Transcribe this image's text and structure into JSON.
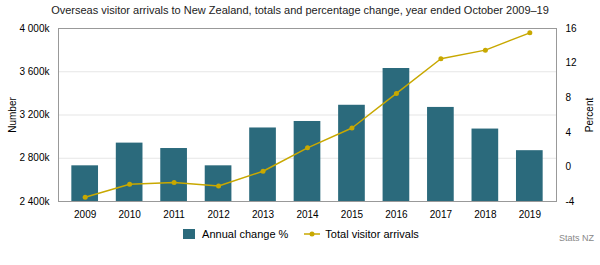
{
  "chart_data": {
    "type": "bar",
    "title": "Overseas visitor arrivals to New Zealand, totals and percentage change, year ended October 2009–19",
    "x": [
      2009,
      2010,
      2011,
      2012,
      2013,
      2014,
      2015,
      2016,
      2017,
      2018,
      2019
    ],
    "xlim": [
      2008.4,
      2019.6
    ],
    "xticks": [
      2009,
      2010,
      2011,
      2012,
      2013,
      2014,
      2015,
      2016,
      2017,
      2018,
      2019
    ],
    "series": [
      {
        "name": "Annual change %",
        "type": "bar",
        "color": "#2b6a7c",
        "values": [
          2730000,
          2940000,
          2890000,
          2730000,
          3080000,
          3140000,
          3290000,
          3630000,
          3270000,
          3070000,
          2870000
        ]
      },
      {
        "name": "Total visitor arrivals",
        "type": "line",
        "color": "#c8a800",
        "marker": "circle",
        "axis": "y2",
        "values": [
          -3.5,
          -2.0,
          -1.8,
          -2.2,
          -0.5,
          2.2,
          4.5,
          8.5,
          12.5,
          13.5,
          15.5
        ]
      }
    ],
    "ylabel": "Number",
    "y2label": "Percent",
    "ylim": [
      2400000,
      4000000
    ],
    "yticks": [
      {
        "value": 2400000,
        "label": "2 400k"
      },
      {
        "value": 2800000,
        "label": "2 800k"
      },
      {
        "value": 3200000,
        "label": "3 200k"
      },
      {
        "value": 3600000,
        "label": "3 600k"
      },
      {
        "value": 4000000,
        "label": "4 000k"
      }
    ],
    "y2lim": [
      -4,
      16
    ],
    "y2ticks": [
      -4,
      0,
      4,
      8,
      12,
      16
    ],
    "grid": true,
    "legend": "bottom",
    "annotations": [
      "Stats NZ"
    ]
  }
}
